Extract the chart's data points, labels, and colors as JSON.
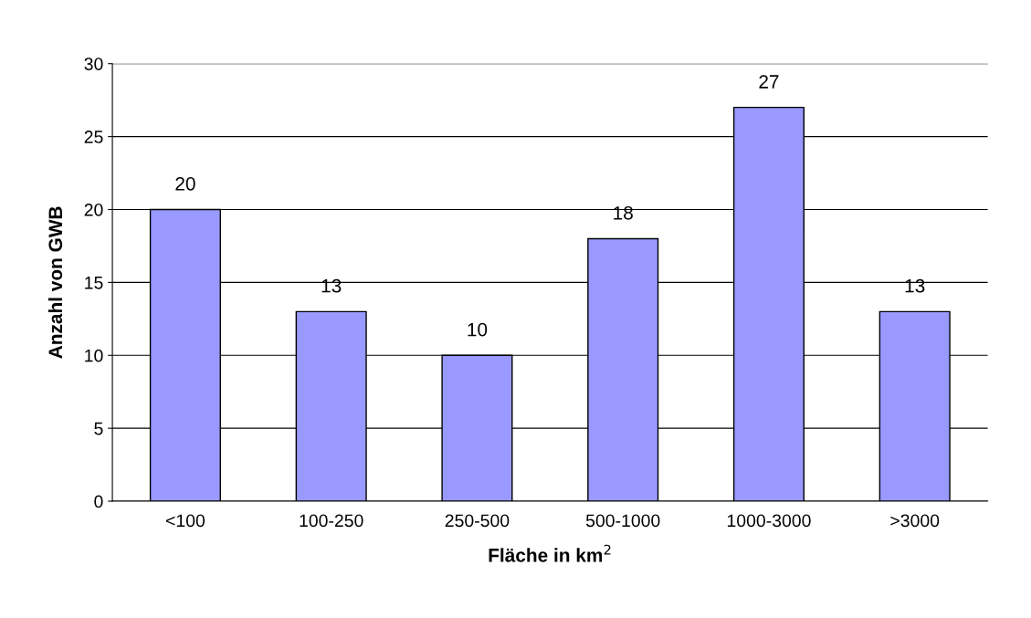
{
  "chart_data": {
    "type": "bar",
    "categories": [
      "<100",
      "100-250",
      "250-500",
      "500-1000",
      "1000-3000",
      ">3000"
    ],
    "values": [
      20,
      13,
      10,
      18,
      27,
      13
    ],
    "color": "#9999ff",
    "xlabel": "Fläche in km$^{2}$",
    "ylabel": "Anzahl von GWB",
    "ylim": [
      0,
      30
    ],
    "yticks": [
      0,
      5,
      10,
      15,
      20,
      25,
      30
    ],
    "grid": "y",
    "data_labels": true,
    "legend": false
  }
}
